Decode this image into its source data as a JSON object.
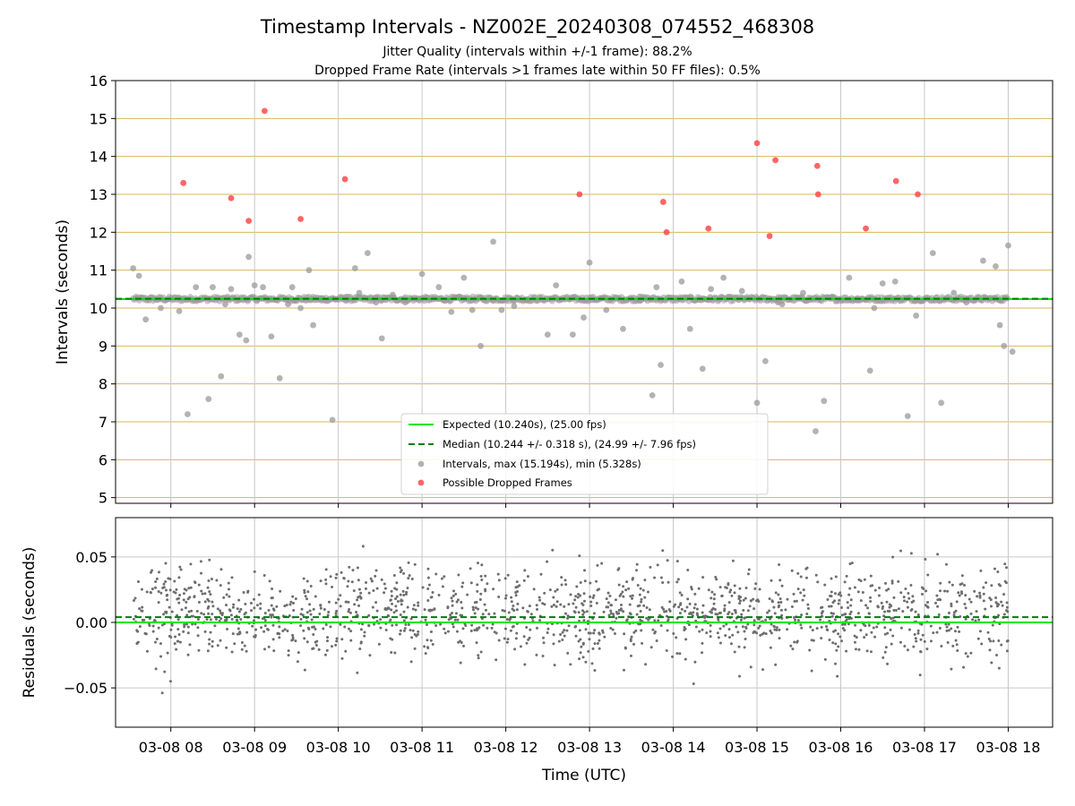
{
  "title": "Timestamp Intervals - NZ002E_20240308_074552_468308",
  "subtitle_line1": "Jitter Quality (intervals within +/-1 frame): 88.2%",
  "subtitle_line2": "Dropped Frame Rate (intervals >1 frames late within 50 FF files): 0.5%",
  "colors": {
    "expected": "#00e600",
    "median": "#007f00",
    "intervals": "#999999",
    "dropped": "#ff4a4a",
    "residuals": "#6e6e6e",
    "hgrid": "#d9b65a",
    "vgrid": "#c8c8c8"
  },
  "chart_data": [
    {
      "type": "scatter",
      "xlabel": "",
      "ylabel": "Intervals (seconds)",
      "ylim": [
        4.85,
        16
      ],
      "yticks": [
        "5",
        "6",
        "7",
        "8",
        "9",
        "10",
        "11",
        "12",
        "13",
        "14",
        "15",
        "16"
      ],
      "xlim_hours": [
        7.34,
        18.53
      ],
      "x_ticks_hours": [
        8,
        9,
        10,
        11,
        12,
        13,
        14,
        15,
        16,
        17,
        18
      ],
      "grid": true,
      "legend_position": "lower center",
      "legend": [
        "Expected (10.240s), (25.00 fps)",
        "Median (10.244 +/- 0.318 s), (24.99 +/- 7.96 fps)",
        "Intervals, max (15.194s), min (5.328s)",
        "Possible Dropped Frames"
      ],
      "expected": 10.24,
      "median": 10.244,
      "series": [
        {
          "name": "Intervals, max (15.194s), min (5.328s)",
          "x_hours": [
            7.55,
            7.62,
            7.7,
            7.88,
            8.1,
            8.2,
            8.3,
            8.45,
            8.5,
            8.6,
            8.72,
            8.82,
            8.9,
            8.93,
            9.0,
            9.1,
            9.2,
            9.3,
            9.4,
            9.45,
            9.55,
            9.65,
            9.8,
            9.93,
            10.1,
            10.2,
            10.35,
            10.45,
            10.52,
            10.65,
            10.8,
            11.0,
            11.2,
            11.35,
            11.5,
            11.6,
            11.7,
            11.85,
            11.95,
            12.1,
            12.25,
            12.5,
            12.8,
            12.93,
            13.0,
            13.4,
            13.6,
            13.75,
            13.8,
            13.85,
            14.1,
            14.2,
            14.35,
            14.6,
            14.82,
            15.0,
            15.1,
            15.3,
            15.55,
            15.7,
            15.8,
            15.9,
            16.1,
            16.2,
            16.35,
            16.5,
            16.65,
            16.8,
            16.9,
            17.1,
            17.2,
            17.5,
            17.7,
            17.85,
            17.9,
            18.0,
            18.05,
            8.65,
            9.7,
            10.25,
            11.45,
            12.6,
            13.2,
            14.45,
            15.25,
            16.4,
            17.35,
            17.95
          ],
          "y_values": [
            11.05,
            10.85,
            9.7,
            10.0,
            9.92,
            7.2,
            10.55,
            7.6,
            10.55,
            8.2,
            10.5,
            9.3,
            9.15,
            11.35,
            10.6,
            10.55,
            9.25,
            8.15,
            10.1,
            10.55,
            10.0,
            11.0,
            10.2,
            7.05,
            10.3,
            11.05,
            11.45,
            10.15,
            9.2,
            10.35,
            10.15,
            10.9,
            10.55,
            9.9,
            10.8,
            9.95,
            9.0,
            11.75,
            9.95,
            10.05,
            10.2,
            9.3,
            9.3,
            9.75,
            11.2,
            9.45,
            10.3,
            7.7,
            10.55,
            8.5,
            10.7,
            9.45,
            8.4,
            10.8,
            10.45,
            7.5,
            8.6,
            10.1,
            10.4,
            6.75,
            7.55,
            10.3,
            10.8,
            10.2,
            8.35,
            10.65,
            10.7,
            7.15,
            9.8,
            11.45,
            7.5,
            10.15,
            11.25,
            11.1,
            9.55,
            11.65,
            8.85,
            10.1,
            9.55,
            10.4,
            10.3,
            10.6,
            9.95,
            10.5,
            10.15,
            10.0,
            10.4,
            9.0
          ]
        },
        {
          "name": "Possible Dropped Frames",
          "x_hours": [
            8.15,
            8.72,
            8.93,
            9.12,
            9.55,
            10.08,
            12.88,
            13.88,
            13.92,
            14.42,
            15.0,
            15.15,
            15.22,
            15.72,
            15.73,
            16.3,
            16.66,
            16.92
          ],
          "y_values": [
            13.3,
            12.9,
            12.3,
            15.2,
            12.35,
            13.4,
            13.0,
            12.8,
            12.0,
            12.1,
            14.35,
            11.9,
            13.9,
            13.75,
            13.0,
            12.1,
            13.35,
            13.0
          ]
        }
      ]
    },
    {
      "type": "scatter",
      "xlabel": "Time (UTC)",
      "ylabel": "Residuals (seconds)",
      "ylim": [
        -0.08,
        0.08
      ],
      "yticks": [
        "−0.05",
        "0.00",
        "0.05"
      ],
      "ytick_values": [
        -0.05,
        0,
        0.05
      ],
      "xtick_labels": [
        "03-08 08",
        "03-08 09",
        "03-08 10",
        "03-08 11",
        "03-08 12",
        "03-08 13",
        "03-08 14",
        "03-08 15",
        "03-08 16",
        "03-08 17",
        "03-08 18"
      ],
      "expected_residual": 0.0,
      "median_residual": 0.004,
      "residual_mean": 0.006,
      "residual_std": 0.018,
      "x_range_hours": [
        7.55,
        18.0
      ],
      "point_count": 1600
    }
  ]
}
